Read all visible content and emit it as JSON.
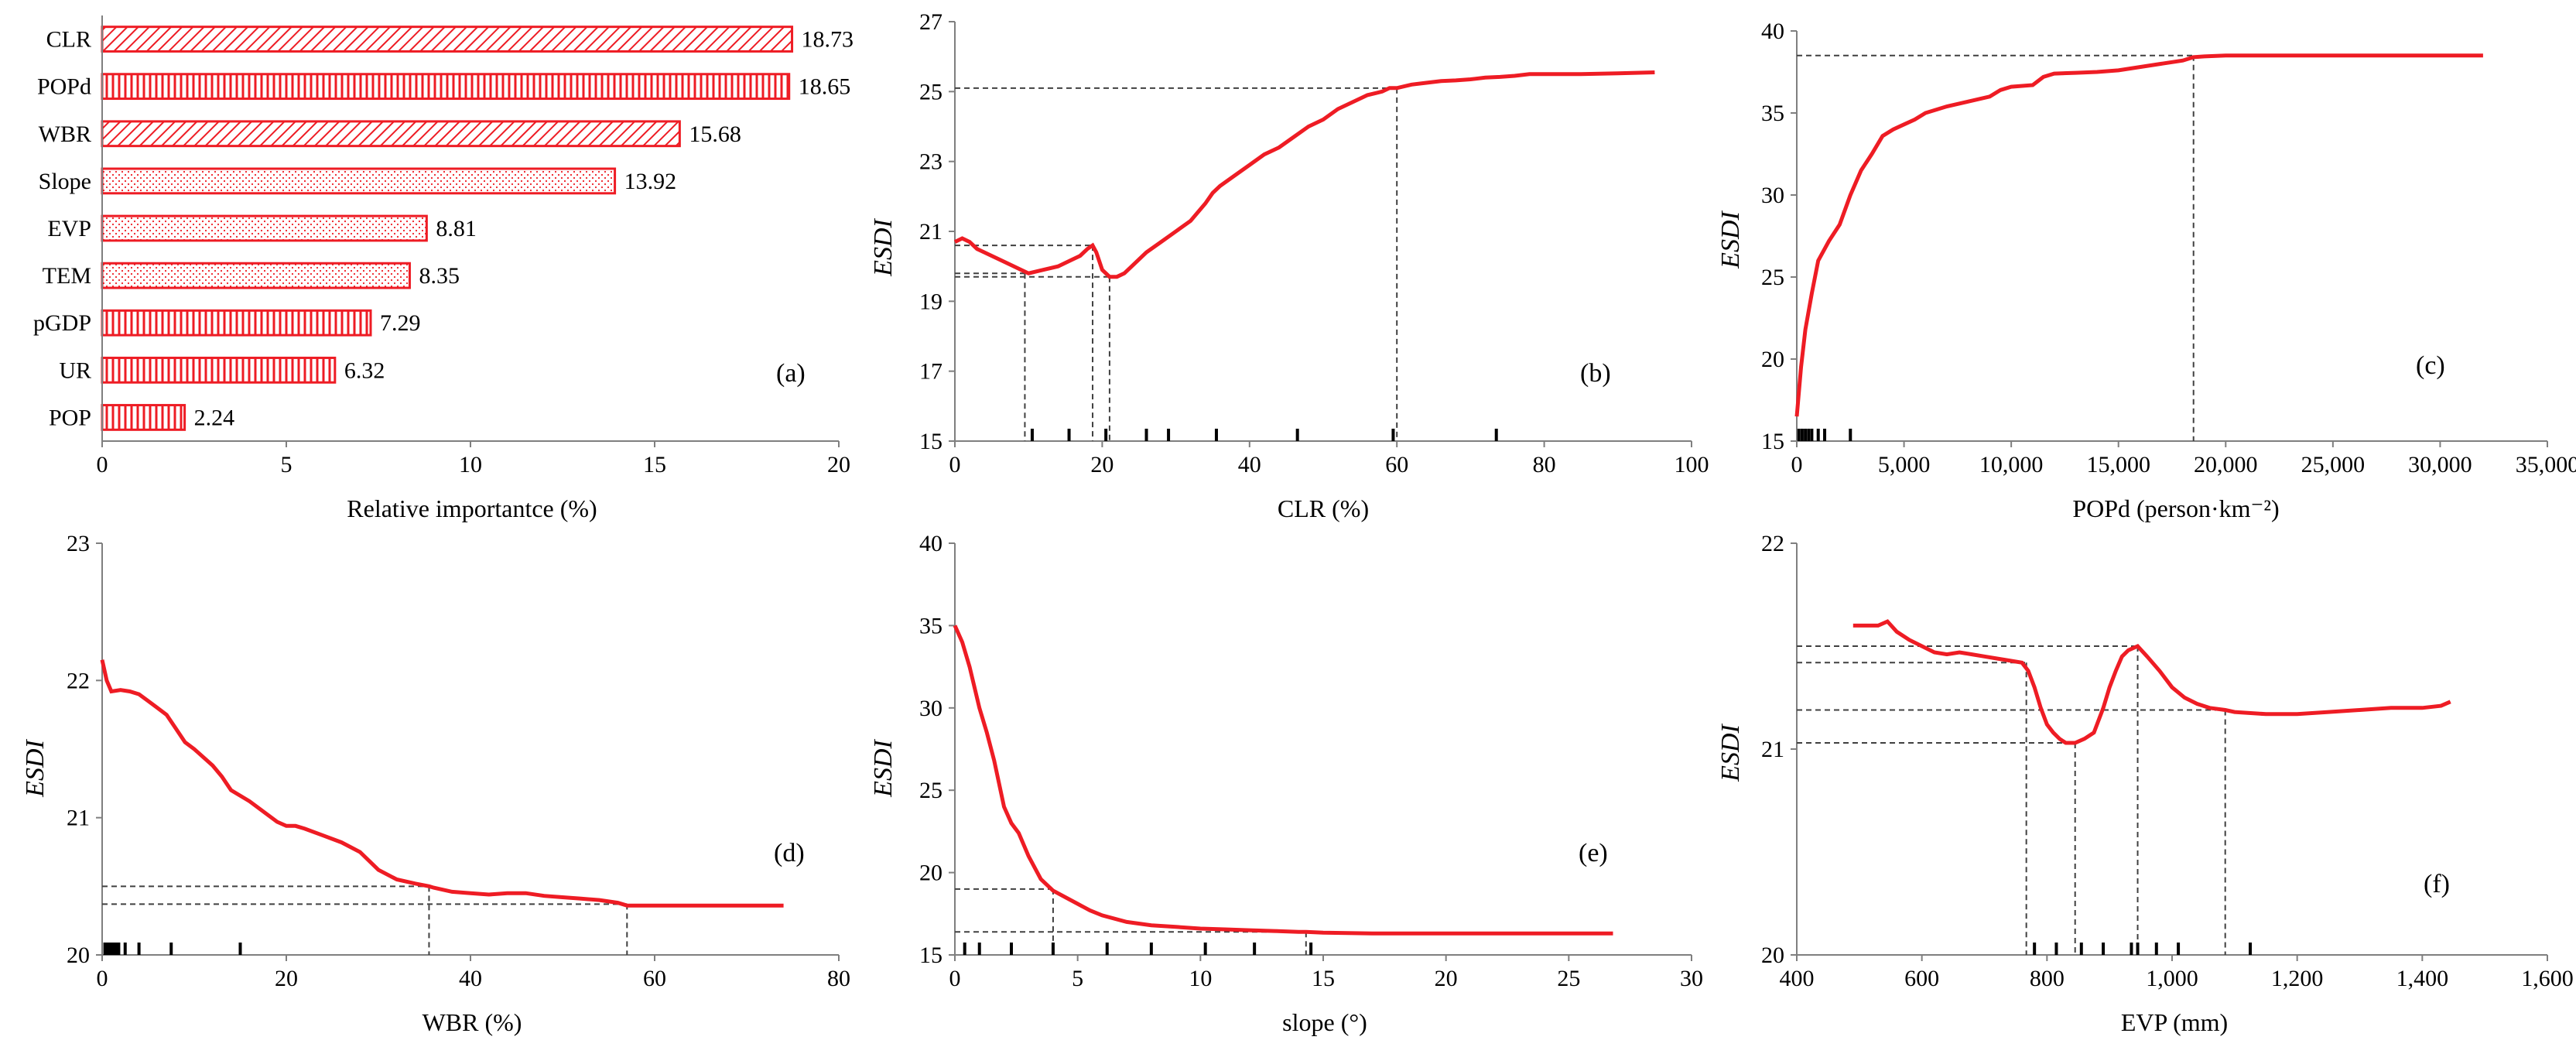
{
  "figure": {
    "line_color": "#ee1c24",
    "axis_color": "#7f7f7f",
    "ref_line_color": "#404040"
  },
  "chart_data": [
    {
      "id": "a",
      "panel_label": "(a)",
      "type": "bar",
      "orientation": "horizontal",
      "xlabel": "Relative importantce (%)",
      "xlim": [
        0,
        20
      ],
      "xticks": [
        0,
        5,
        10,
        15,
        20
      ],
      "categories": [
        "CLR",
        "POPd",
        "WBR",
        "Slope",
        "EVP",
        "TEM",
        "pGDP",
        "UR",
        "POP"
      ],
      "values": [
        18.73,
        18.65,
        15.68,
        13.92,
        8.81,
        8.35,
        7.29,
        6.32,
        2.24
      ],
      "value_labels": [
        "18.73",
        "18.65",
        "15.68",
        "13.92",
        "8.81",
        "8.35",
        "7.29",
        "6.32",
        "2.24"
      ],
      "patterns": [
        "diag",
        "vert",
        "diag",
        "dots",
        "dots",
        "dots",
        "vert",
        "vert",
        "vert"
      ]
    },
    {
      "id": "b",
      "panel_label": "(b)",
      "type": "line",
      "xlabel": "CLR (%)",
      "ylabel": "ESDI",
      "xlim": [
        0,
        100
      ],
      "ylim": [
        15,
        27
      ],
      "xticks": [
        0,
        20,
        40,
        60,
        80,
        100
      ],
      "yticks": [
        15,
        17,
        19,
        21,
        23,
        25,
        27
      ],
      "x": [
        0,
        1,
        2,
        3,
        5,
        7,
        9,
        10,
        12,
        14,
        16,
        17,
        18,
        18.7,
        19.2,
        20,
        21,
        22,
        23,
        24,
        26,
        28,
        30,
        32,
        34,
        35,
        36,
        38,
        40,
        42,
        44,
        46,
        48,
        50,
        52,
        54,
        56,
        58,
        59,
        60,
        62,
        64,
        66,
        68,
        70,
        72,
        74,
        76,
        78,
        80,
        85,
        90,
        95
      ],
      "y": [
        20.7,
        20.8,
        20.7,
        20.5,
        20.3,
        20.1,
        19.9,
        19.8,
        19.9,
        20.0,
        20.2,
        20.3,
        20.5,
        20.6,
        20.4,
        19.9,
        19.7,
        19.7,
        19.8,
        20.0,
        20.4,
        20.7,
        21.0,
        21.3,
        21.8,
        22.1,
        22.3,
        22.6,
        22.9,
        23.2,
        23.4,
        23.7,
        24.0,
        24.2,
        24.5,
        24.7,
        24.9,
        25.0,
        25.1,
        25.1,
        25.2,
        25.25,
        25.3,
        25.32,
        25.35,
        25.4,
        25.42,
        25.45,
        25.5,
        25.5,
        25.5,
        25.52,
        25.55
      ],
      "ref_points": [
        [
          9.5,
          19.8
        ],
        [
          18.7,
          20.6
        ],
        [
          21,
          19.7
        ],
        [
          60,
          25.1
        ]
      ],
      "rug": [
        10.5,
        15.5,
        20.5,
        26,
        29,
        35.5,
        46.5,
        59.5,
        73.5
      ]
    },
    {
      "id": "c",
      "panel_label": "(c)",
      "type": "line",
      "xlabel": "POPd (person·km⁻²)",
      "ylabel": "ESDI",
      "xlim": [
        0,
        35000
      ],
      "ylim": [
        15,
        40
      ],
      "xticks": [
        0,
        5000,
        10000,
        15000,
        20000,
        25000,
        30000,
        35000
      ],
      "xtick_labels": [
        "0",
        "5,000",
        "10,000",
        "15,000",
        "20,000",
        "25,000",
        "30,000",
        "35,000"
      ],
      "yticks": [
        15,
        20,
        25,
        30,
        35,
        40
      ],
      "x": [
        0,
        200,
        400,
        700,
        1000,
        1500,
        2000,
        2500,
        3000,
        3500,
        4000,
        4500,
        5000,
        5500,
        6000,
        7000,
        8000,
        9000,
        9500,
        10000,
        11000,
        11500,
        12000,
        13000,
        14000,
        15000,
        16000,
        17000,
        18000,
        18500,
        19000,
        20000,
        25000,
        30000,
        32000
      ],
      "y": [
        16.5,
        19.5,
        21.8,
        24.0,
        26.0,
        27.2,
        28.2,
        30.0,
        31.5,
        32.5,
        33.6,
        34.0,
        34.3,
        34.6,
        35.0,
        35.4,
        35.7,
        36.0,
        36.4,
        36.6,
        36.7,
        37.2,
        37.4,
        37.45,
        37.5,
        37.6,
        37.8,
        38.0,
        38.2,
        38.4,
        38.45,
        38.5,
        38.5,
        38.5,
        38.5
      ],
      "ref_points": [
        [
          18500,
          38.5
        ]
      ],
      "rug": [
        100,
        250,
        400,
        550,
        700,
        1000,
        1300,
        2500
      ]
    },
    {
      "id": "d",
      "panel_label": "(d)",
      "type": "line",
      "xlabel": "WBR  (%)",
      "ylabel": "ESDI",
      "xlim": [
        0,
        80
      ],
      "ylim": [
        20,
        23
      ],
      "xticks": [
        0,
        20,
        40,
        60,
        80
      ],
      "yticks": [
        20,
        21,
        22,
        23
      ],
      "x": [
        0,
        0.5,
        1,
        2,
        3,
        4,
        5,
        6,
        7,
        8,
        9,
        10,
        12,
        13,
        14,
        16,
        18,
        19,
        20,
        21,
        22,
        24,
        26,
        28,
        30,
        32,
        34,
        35.5,
        36,
        38,
        40,
        42,
        44,
        46,
        48,
        50,
        52,
        54,
        56,
        57,
        58,
        60,
        65,
        70,
        74
      ],
      "y": [
        22.15,
        22.0,
        21.92,
        21.93,
        21.92,
        21.9,
        21.85,
        21.8,
        21.75,
        21.65,
        21.55,
        21.5,
        21.38,
        21.3,
        21.2,
        21.12,
        21.02,
        20.97,
        20.94,
        20.94,
        20.92,
        20.87,
        20.82,
        20.75,
        20.62,
        20.55,
        20.52,
        20.5,
        20.49,
        20.46,
        20.45,
        20.44,
        20.45,
        20.45,
        20.43,
        20.42,
        20.41,
        20.4,
        20.38,
        20.36,
        20.36,
        20.36,
        20.36,
        20.36,
        20.36
      ],
      "ref_points": [
        [
          35.5,
          20.5
        ],
        [
          57,
          20.37
        ]
      ],
      "rug": [
        0.3,
        0.6,
        0.9,
        1.2,
        1.5,
        1.8,
        2.5,
        4,
        7.5,
        15
      ]
    },
    {
      "id": "e",
      "panel_label": "(e)",
      "type": "line",
      "xlabel": "slope (°)",
      "ylabel": "ESDI",
      "xlim": [
        0,
        30
      ],
      "ylim": [
        15,
        40
      ],
      "xticks": [
        0,
        5,
        10,
        15,
        20,
        25,
        30
      ],
      "yticks": [
        15,
        20,
        25,
        30,
        35,
        40
      ],
      "x": [
        0,
        0.3,
        0.6,
        1,
        1.3,
        1.6,
        2,
        2.3,
        2.6,
        3,
        3.5,
        4,
        4.5,
        5,
        5.5,
        6,
        7,
        8,
        9,
        10,
        11,
        12,
        13,
        14,
        14.3,
        15,
        17,
        20,
        23,
        25,
        26.8
      ],
      "y": [
        35,
        34,
        32.5,
        30,
        28.5,
        26.8,
        24,
        23,
        22.4,
        21,
        19.6,
        18.9,
        18.5,
        18.1,
        17.7,
        17.4,
        17.0,
        16.8,
        16.7,
        16.6,
        16.55,
        16.5,
        16.45,
        16.4,
        16.4,
        16.35,
        16.3,
        16.3,
        16.3,
        16.3,
        16.3
      ],
      "ref_points": [
        [
          4,
          19
        ],
        [
          14.3,
          16.4
        ]
      ],
      "rug": [
        0.4,
        1,
        2.3,
        4,
        6.2,
        8,
        10.2,
        12.2,
        14.5
      ]
    },
    {
      "id": "f",
      "panel_label": "(f)",
      "type": "line",
      "xlabel": "EVP (mm)",
      "ylabel": "ESDI",
      "xlim": [
        400,
        1600
      ],
      "ylim": [
        20,
        22
      ],
      "xticks": [
        400,
        600,
        800,
        1000,
        1200,
        1400,
        1600
      ],
      "xtick_labels": [
        "400",
        "600",
        "800",
        "1,000",
        "1,200",
        "1,400",
        "1,600"
      ],
      "yticks": [
        20,
        21,
        22
      ],
      "x": [
        490,
        510,
        530,
        545,
        560,
        580,
        600,
        620,
        640,
        660,
        680,
        700,
        720,
        740,
        760,
        770,
        780,
        790,
        800,
        810,
        820,
        830,
        845,
        860,
        875,
        890,
        900,
        910,
        920,
        930,
        945,
        960,
        980,
        1000,
        1020,
        1040,
        1060,
        1085,
        1100,
        1150,
        1200,
        1250,
        1300,
        1350,
        1400,
        1430,
        1445
      ],
      "y": [
        21.6,
        21.6,
        21.6,
        21.62,
        21.57,
        21.53,
        21.5,
        21.47,
        21.46,
        21.47,
        21.46,
        21.45,
        21.44,
        21.43,
        21.42,
        21.38,
        21.3,
        21.2,
        21.12,
        21.08,
        21.05,
        21.03,
        21.03,
        21.05,
        21.08,
        21.2,
        21.3,
        21.38,
        21.45,
        21.48,
        21.5,
        21.45,
        21.38,
        21.3,
        21.25,
        21.22,
        21.2,
        21.19,
        21.18,
        21.17,
        21.17,
        21.18,
        21.19,
        21.2,
        21.2,
        21.21,
        21.23
      ],
      "ref_points": [
        [
          767,
          21.42
        ],
        [
          845,
          21.03
        ],
        [
          945,
          21.5
        ],
        [
          1085,
          21.19
        ]
      ],
      "rug": [
        780,
        815,
        855,
        890,
        935,
        945,
        975,
        1010,
        1125
      ]
    }
  ]
}
